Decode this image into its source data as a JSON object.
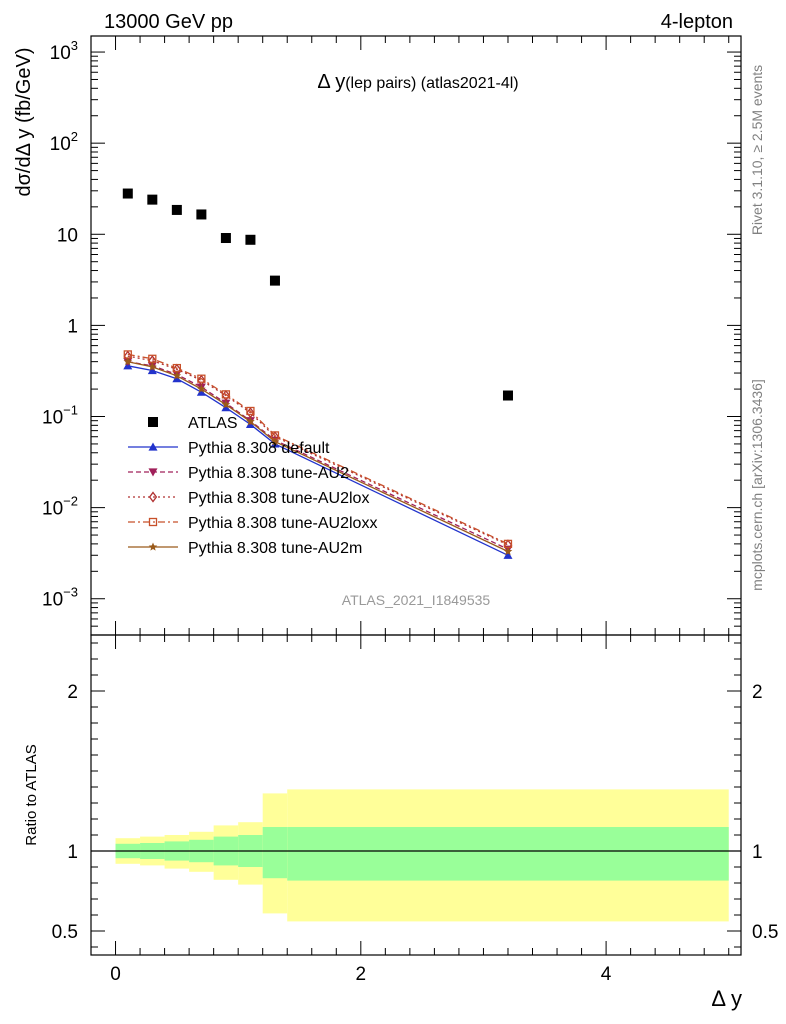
{
  "header": {
    "left": "13000 GeV pp",
    "right": "4-lepton",
    "title_main": "Δ y",
    "title_sub": "(lep pairs) (atlas2021-4l)",
    "side_top": "Rivet 3.1.10, ≥ 2.5M events",
    "side_bottom": "mcplots.cern.ch [arXiv:1306.3436]",
    "watermark": "ATLAS_2021_I1849535"
  },
  "chart_data": [
    {
      "type": "scatter",
      "panel": "main",
      "ylabel": "dσ/dΔ y (fb/GeV)",
      "yscale": "log",
      "ylim": [
        0.0004,
        1500
      ],
      "xlim": [
        -0.2,
        5.1
      ],
      "yticks": [
        {
          "value": 1000,
          "base": "10",
          "exp": "3"
        },
        {
          "value": 100,
          "base": "10",
          "exp": "2"
        },
        {
          "value": 10,
          "base": "10",
          "exp": ""
        },
        {
          "value": 1,
          "base": "1",
          "exp": ""
        },
        {
          "value": 0.1,
          "base": "10",
          "exp": "−1"
        },
        {
          "value": 0.01,
          "base": "10",
          "exp": "−2"
        },
        {
          "value": 0.001,
          "base": "10",
          "exp": "−3"
        }
      ],
      "series": [
        {
          "name": "ATLAS",
          "color": "#000000",
          "marker": "square",
          "line": "none",
          "x": [
            0.1,
            0.3,
            0.5,
            0.7,
            0.9,
            1.1,
            1.3,
            3.2
          ],
          "y": [
            28,
            24,
            18.5,
            16.5,
            9.1,
            8.7,
            3.1,
            0.17
          ]
        },
        {
          "name": "Pythia 8.308 default",
          "color": "#2233cc",
          "marker": "triangle-up",
          "line": "solid",
          "x": [
            0.1,
            0.3,
            0.5,
            0.7,
            0.9,
            1.1,
            1.3,
            3.2
          ],
          "y": [
            0.36,
            0.32,
            0.26,
            0.185,
            0.125,
            0.082,
            0.05,
            0.003
          ]
        },
        {
          "name": "Pythia 8.308 tune-AU2",
          "color": "#a0205a",
          "marker": "triangle-down",
          "line": "dashed",
          "x": [
            0.1,
            0.3,
            0.5,
            0.7,
            0.9,
            1.1,
            1.3,
            3.2
          ],
          "y": [
            0.4,
            0.36,
            0.29,
            0.21,
            0.14,
            0.09,
            0.055,
            0.0035
          ]
        },
        {
          "name": "Pythia 8.308 tune-AU2lox",
          "color": "#b03030",
          "marker": "diamond-open",
          "line": "dotted",
          "x": [
            0.1,
            0.3,
            0.5,
            0.7,
            0.9,
            1.1,
            1.3,
            3.2
          ],
          "y": [
            0.46,
            0.41,
            0.33,
            0.25,
            0.17,
            0.11,
            0.06,
            0.0039
          ]
        },
        {
          "name": "Pythia 8.308 tune-AU2loxx",
          "color": "#c8502a",
          "marker": "square-open",
          "line": "dashdot",
          "x": [
            0.1,
            0.3,
            0.5,
            0.7,
            0.9,
            1.1,
            1.3,
            3.2
          ],
          "y": [
            0.48,
            0.43,
            0.34,
            0.26,
            0.175,
            0.115,
            0.062,
            0.004
          ]
        },
        {
          "name": "Pythia 8.308 tune-AU2m",
          "color": "#9a5a1a",
          "marker": "star",
          "line": "solid",
          "x": [
            0.1,
            0.3,
            0.5,
            0.7,
            0.9,
            1.1,
            1.3,
            3.2
          ],
          "y": [
            0.4,
            0.35,
            0.28,
            0.2,
            0.135,
            0.088,
            0.053,
            0.0033
          ]
        }
      ]
    },
    {
      "type": "area",
      "panel": "ratio",
      "ylabel": "Ratio to ATLAS",
      "xlabel": "Δ y",
      "xlim": [
        -0.2,
        5.1
      ],
      "ylim": [
        0.35,
        2.35
      ],
      "yticks": [
        0.5,
        1,
        2
      ],
      "ytick_labels": [
        "0.5",
        "1",
        "2"
      ],
      "xticks": [
        0,
        2,
        4
      ],
      "xtick_labels": [
        "0",
        "2",
        "4"
      ],
      "reference_line": 1,
      "bins": {
        "edges": [
          0.0,
          0.2,
          0.4,
          0.6,
          0.8,
          1.0,
          1.2,
          1.4,
          5.0
        ],
        "green_low": [
          0.955,
          0.95,
          0.94,
          0.93,
          0.91,
          0.9,
          0.83,
          0.815
        ],
        "green_high": [
          1.045,
          1.05,
          1.06,
          1.07,
          1.09,
          1.1,
          1.15,
          1.15
        ],
        "yellow_low": [
          0.92,
          0.91,
          0.89,
          0.87,
          0.82,
          0.79,
          0.61,
          0.56
        ],
        "yellow_high": [
          1.08,
          1.09,
          1.1,
          1.12,
          1.16,
          1.18,
          1.36,
          1.385
        ]
      },
      "band_colors": {
        "inner": "#99ff99",
        "outer": "#ffff99"
      }
    }
  ]
}
